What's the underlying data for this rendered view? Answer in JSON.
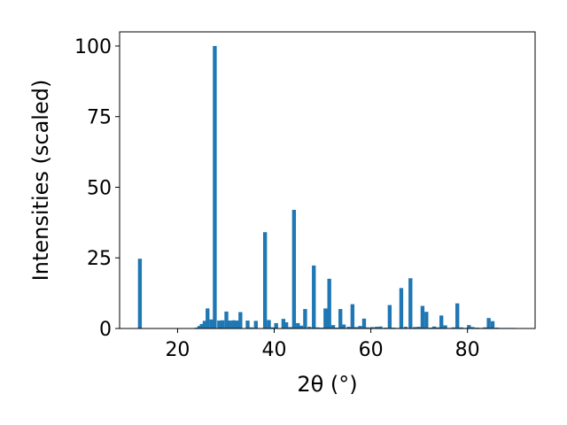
{
  "chart_data": {
    "type": "bar",
    "xlabel": "2θ (°)",
    "ylabel": "Intensities (scaled)",
    "xlim": [
      8,
      94
    ],
    "ylim": [
      0,
      105
    ],
    "xticks": [
      20,
      40,
      60,
      80
    ],
    "yticks": [
      0,
      25,
      50,
      75,
      100
    ],
    "bar_width": 0.8,
    "bar_color": "#1f77b4",
    "grid": false,
    "x": [
      12.2,
      23.9,
      24.5,
      25.0,
      25.6,
      26.2,
      27.0,
      27.7,
      28.6,
      29.3,
      30.1,
      30.8,
      31.6,
      32.3,
      33.0,
      34.5,
      35.3,
      36.2,
      38.1,
      38.9,
      39.6,
      40.4,
      41.9,
      42.5,
      43.3,
      44.1,
      44.9,
      45.6,
      46.4,
      47.3,
      48.2,
      49.0,
      49.9,
      50.6,
      51.4,
      52.2,
      52.9,
      53.7,
      54.4,
      55.4,
      56.2,
      57.0,
      57.8,
      58.6,
      59.4,
      60.3,
      61.2,
      62.0,
      63.0,
      63.9,
      64.7,
      65.5,
      66.3,
      67.2,
      68.2,
      69.1,
      69.9,
      70.7,
      71.5,
      72.4,
      73.1,
      73.8,
      74.6,
      75.4,
      76.3,
      77.1,
      77.9,
      78.7,
      79.5,
      80.3,
      81.1,
      82.0,
      82.8,
      83.6,
      84.4,
      85.2,
      86.1,
      87.0,
      87.8,
      88.6,
      89.5
    ],
    "values": [
      24.7,
      0.3,
      0.9,
      1.6,
      2.7,
      7.1,
      3.2,
      100.0,
      2.8,
      2.9,
      6.0,
      2.8,
      2.9,
      2.8,
      5.8,
      2.8,
      0.4,
      2.7,
      34.1,
      3.0,
      0.4,
      1.9,
      3.4,
      2.2,
      0.5,
      42.0,
      1.9,
      1.0,
      6.9,
      0.6,
      22.3,
      0.4,
      0.3,
      7.1,
      17.6,
      1.2,
      0.3,
      6.9,
      1.4,
      0.6,
      8.6,
      0.5,
      0.9,
      3.5,
      0.4,
      0.5,
      0.6,
      0.7,
      0.3,
      8.3,
      0.3,
      0.2,
      14.3,
      0.6,
      17.8,
      0.5,
      0.6,
      8.0,
      5.9,
      0.3,
      0.7,
      0.4,
      4.6,
      1.1,
      0.2,
      0.4,
      8.9,
      0.4,
      0.2,
      1.2,
      0.5,
      0.3,
      0.2,
      0.4,
      3.7,
      2.6,
      0.3,
      0.2,
      0.2,
      0.2,
      0.2
    ]
  }
}
